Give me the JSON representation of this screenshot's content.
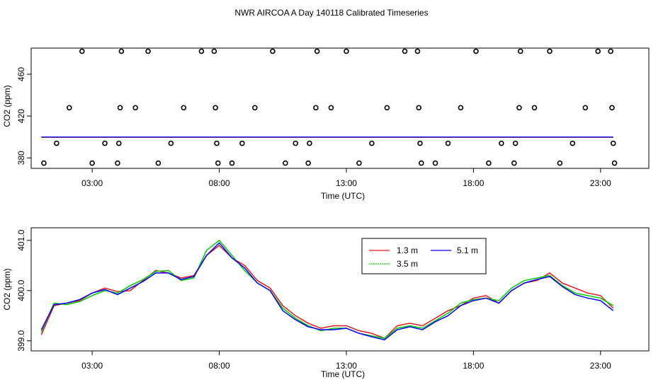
{
  "title": "NWR AIRCOA A  Day 140118  Calibrated Timeseries",
  "colors": {
    "c13": "#e31a1c",
    "c35": "#00cc00",
    "c51": "#0000ff",
    "axis": "#000000"
  },
  "chart_data": [
    {
      "type": "scatter",
      "xlabel": "Time (UTC)",
      "ylabel": "CO2 (ppm)",
      "xlim": [
        0.6,
        24.9
      ],
      "ylim": [
        370,
        485
      ],
      "xticks": [
        3,
        8,
        13,
        18,
        23
      ],
      "xtick_labels": [
        "03:00",
        "08:00",
        "13:00",
        "18:00",
        "23:00"
      ],
      "yticks": [
        380,
        420,
        460
      ],
      "ytick_labels": [
        "380",
        "420",
        "460"
      ],
      "points": [
        [
          1.1,
          375
        ],
        [
          1.6,
          394
        ],
        [
          2.1,
          428
        ],
        [
          2.6,
          482
        ],
        [
          3.0,
          375
        ],
        [
          3.5,
          394
        ],
        [
          4.0,
          375
        ],
        [
          4.05,
          394
        ],
        [
          4.1,
          428
        ],
        [
          4.15,
          482
        ],
        [
          4.7,
          428
        ],
        [
          5.2,
          482
        ],
        [
          5.6,
          375
        ],
        [
          6.1,
          394
        ],
        [
          6.6,
          428
        ],
        [
          7.3,
          482
        ],
        [
          7.8,
          482
        ],
        [
          7.85,
          428
        ],
        [
          7.9,
          394
        ],
        [
          7.95,
          375
        ],
        [
          8.5,
          375
        ],
        [
          8.9,
          394
        ],
        [
          9.4,
          428
        ],
        [
          10.1,
          482
        ],
        [
          10.6,
          375
        ],
        [
          11.0,
          394
        ],
        [
          11.5,
          375
        ],
        [
          11.55,
          394
        ],
        [
          11.8,
          428
        ],
        [
          11.85,
          482
        ],
        [
          12.4,
          428
        ],
        [
          13.0,
          482
        ],
        [
          13.5,
          375
        ],
        [
          14.0,
          394
        ],
        [
          14.6,
          428
        ],
        [
          15.3,
          482
        ],
        [
          15.8,
          482
        ],
        [
          15.85,
          428
        ],
        [
          15.9,
          394
        ],
        [
          15.95,
          375
        ],
        [
          16.5,
          375
        ],
        [
          17.0,
          394
        ],
        [
          17.5,
          428
        ],
        [
          18.1,
          482
        ],
        [
          18.6,
          375
        ],
        [
          19.1,
          394
        ],
        [
          19.6,
          375
        ],
        [
          19.65,
          394
        ],
        [
          19.8,
          428
        ],
        [
          19.85,
          482
        ],
        [
          20.4,
          428
        ],
        [
          21.0,
          482
        ],
        [
          21.4,
          375
        ],
        [
          21.9,
          394
        ],
        [
          22.4,
          428
        ],
        [
          22.9,
          482
        ],
        [
          23.4,
          482
        ],
        [
          23.45,
          428
        ],
        [
          23.5,
          394
        ],
        [
          23.55,
          375
        ]
      ],
      "flat_lines": [
        {
          "name": "1.3 m",
          "x": [
            1.0,
            23.5
          ],
          "value": 399.6
        },
        {
          "name": "3.5 m",
          "x": [
            1.0,
            23.5
          ],
          "value": 399.9
        },
        {
          "name": "5.1 m",
          "x": [
            1.0,
            23.5
          ],
          "value": 400.0
        }
      ]
    },
    {
      "type": "line",
      "xlabel": "Time (UTC)",
      "ylabel": "CO2 (ppm)",
      "xlim": [
        0.6,
        24.9
      ],
      "ylim": [
        398.8,
        401.25
      ],
      "xticks": [
        3,
        8,
        13,
        18,
        23
      ],
      "xtick_labels": [
        "03:00",
        "08:00",
        "13:00",
        "18:00",
        "23:00"
      ],
      "yticks": [
        399.0,
        400.0,
        401.0
      ],
      "ytick_labels": [
        "399.0",
        "400.0",
        "401.0"
      ],
      "legend": {
        "position": "top-right",
        "entries": [
          "1.3 m",
          "3.5 m",
          "5.1 m"
        ]
      },
      "x": [
        1.0,
        1.5,
        2.0,
        2.5,
        3.0,
        3.5,
        4.0,
        4.5,
        5.0,
        5.5,
        6.0,
        6.5,
        7.0,
        7.5,
        8.0,
        8.5,
        9.0,
        9.5,
        10.0,
        10.5,
        11.0,
        11.5,
        12.0,
        12.5,
        13.0,
        13.5,
        14.0,
        14.5,
        15.0,
        15.5,
        16.0,
        16.5,
        17.0,
        17.5,
        18.0,
        18.5,
        19.0,
        19.5,
        20.0,
        20.5,
        21.0,
        21.5,
        22.0,
        22.5,
        23.0,
        23.5
      ],
      "series": [
        {
          "name": "1.3 m",
          "color_key": "c13",
          "values": [
            399.12,
            399.7,
            399.75,
            399.8,
            399.95,
            400.05,
            399.98,
            400.0,
            400.2,
            400.4,
            400.35,
            400.25,
            400.3,
            400.7,
            400.9,
            400.65,
            400.5,
            400.2,
            400.05,
            399.7,
            399.5,
            399.35,
            399.25,
            399.3,
            399.3,
            399.2,
            399.15,
            399.05,
            399.3,
            399.35,
            399.3,
            399.45,
            399.6,
            399.7,
            399.85,
            399.9,
            399.75,
            400.0,
            400.15,
            400.2,
            400.35,
            400.15,
            400.05,
            399.95,
            399.9,
            399.65
          ]
        },
        {
          "name": "3.5 m",
          "color_key": "c35",
          "values": [
            399.18,
            399.75,
            399.72,
            399.78,
            399.9,
            400.0,
            399.95,
            400.1,
            400.22,
            400.38,
            400.4,
            400.2,
            400.25,
            400.8,
            401.0,
            400.7,
            400.4,
            400.15,
            400.0,
            399.65,
            399.45,
            399.3,
            399.2,
            399.25,
            399.25,
            399.15,
            399.1,
            399.05,
            399.25,
            399.3,
            399.25,
            399.4,
            399.55,
            399.75,
            399.82,
            399.85,
            399.8,
            400.05,
            400.2,
            400.25,
            400.3,
            400.1,
            399.95,
            399.9,
            399.85,
            399.7
          ]
        },
        {
          "name": "5.1 m",
          "color_key": "c51",
          "values": [
            399.22,
            399.72,
            399.75,
            399.82,
            399.95,
            400.02,
            399.92,
            400.05,
            400.18,
            400.35,
            400.35,
            400.22,
            400.28,
            400.7,
            400.95,
            400.65,
            400.45,
            400.15,
            400.0,
            399.6,
            399.42,
            399.28,
            399.22,
            399.22,
            399.25,
            399.15,
            399.08,
            399.02,
            399.22,
            399.28,
            399.22,
            399.38,
            399.5,
            399.7,
            399.8,
            399.85,
            399.75,
            400.0,
            400.15,
            400.22,
            400.28,
            400.08,
            399.92,
            399.85,
            399.8,
            399.6
          ]
        }
      ]
    }
  ]
}
